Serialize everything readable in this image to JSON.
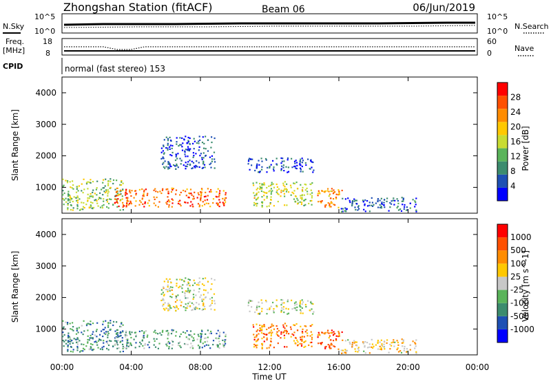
{
  "header": {
    "station": "Zhongshan Station (fitACF)",
    "beam": "Beam 06",
    "date": "06/Jun/2019"
  },
  "noise_panel": {
    "left_label": "N.Sky",
    "right_label": "N.Search",
    "left_ticks": [
      "10^5",
      "10^0"
    ],
    "right_ticks": [
      "10^5",
      "10^0"
    ]
  },
  "freq_panel": {
    "left_label_1": "Freq.",
    "left_label_2": "[MHz]",
    "left_ticks": [
      "18",
      "8"
    ],
    "right_label": "Nave",
    "right_ticks": [
      "60",
      "0"
    ],
    "cpid_label": "CPID",
    "mode_text": "normal (fast stereo) 153"
  },
  "chart_data": [
    {
      "type": "heatmap",
      "name": "power",
      "ylabel": "Slant Range [km]",
      "yticks": [
        "4000",
        "3000",
        "2000",
        "1000"
      ],
      "ylim": [
        180,
        4500
      ],
      "xlim": [
        "00:00",
        "24:00"
      ],
      "colorbar_label": "Power [dB]",
      "colorbar_ticks": [
        "28",
        "24",
        "20",
        "16",
        "12",
        "8",
        "4"
      ],
      "colors": [
        "#0000ff",
        "#1e50b4",
        "#3c8c6e",
        "#5ab45a",
        "#c8dc32",
        "#ffc800",
        "#ff8c00",
        "#ff5000",
        "#ff0000"
      ],
      "regions": [
        {
          "t0": 0.0,
          "t1": 3.5,
          "r0": 300,
          "r1": 1300,
          "level": 0.45
        },
        {
          "t0": 3.0,
          "t1": 9.5,
          "r0": 400,
          "r1": 1000,
          "level": 0.8
        },
        {
          "t0": 5.7,
          "t1": 8.8,
          "r0": 1600,
          "r1": 2650,
          "level": 0.15
        },
        {
          "t0": 10.7,
          "t1": 14.5,
          "r0": 1500,
          "r1": 1950,
          "level": 0.15
        },
        {
          "t0": 11.0,
          "t1": 14.5,
          "r0": 400,
          "r1": 1200,
          "level": 0.5
        },
        {
          "t0": 14.7,
          "t1": 16.2,
          "r0": 350,
          "r1": 1000,
          "level": 0.7
        },
        {
          "t0": 16.0,
          "t1": 20.5,
          "r0": 250,
          "r1": 700,
          "level": 0.2
        }
      ]
    },
    {
      "type": "heatmap",
      "name": "velocity",
      "ylabel": "Slant Range [km]",
      "yticks": [
        "4000",
        "3000",
        "2000",
        "1000"
      ],
      "ylim": [
        180,
        4500
      ],
      "xlim": [
        "00:00",
        "24:00"
      ],
      "xticks": [
        "00:00",
        "04:00",
        "08:00",
        "12:00",
        "16:00",
        "20:00",
        "00:00"
      ],
      "xlabel": "Time UT",
      "colorbar_label": "Velocity [m s^-1]",
      "colorbar_ticks": [
        "1000",
        "500",
        "100",
        "25",
        "-25",
        "-100",
        "-500",
        "-1000"
      ],
      "colors": [
        "#0000ff",
        "#1e50b4",
        "#3c8c6e",
        "#5ab45a",
        "#c8c8c8",
        "#ffc800",
        "#ff8c00",
        "#ff5000",
        "#ff0000"
      ],
      "regions": [
        {
          "t0": 0.0,
          "t1": 3.5,
          "r0": 300,
          "r1": 1300,
          "level": 0.3
        },
        {
          "t0": 3.0,
          "t1": 9.5,
          "r0": 400,
          "r1": 1000,
          "level": 0.35
        },
        {
          "t0": 5.7,
          "t1": 8.8,
          "r0": 1600,
          "r1": 2650,
          "level": 0.5
        },
        {
          "t0": 10.7,
          "t1": 14.5,
          "r0": 1500,
          "r1": 1950,
          "level": 0.5
        },
        {
          "t0": 11.0,
          "t1": 14.5,
          "r0": 400,
          "r1": 1200,
          "level": 0.75
        },
        {
          "t0": 14.7,
          "t1": 16.2,
          "r0": 350,
          "r1": 1000,
          "level": 0.8
        },
        {
          "t0": 16.0,
          "t1": 20.5,
          "r0": 250,
          "r1": 700,
          "level": 0.6
        }
      ]
    }
  ]
}
